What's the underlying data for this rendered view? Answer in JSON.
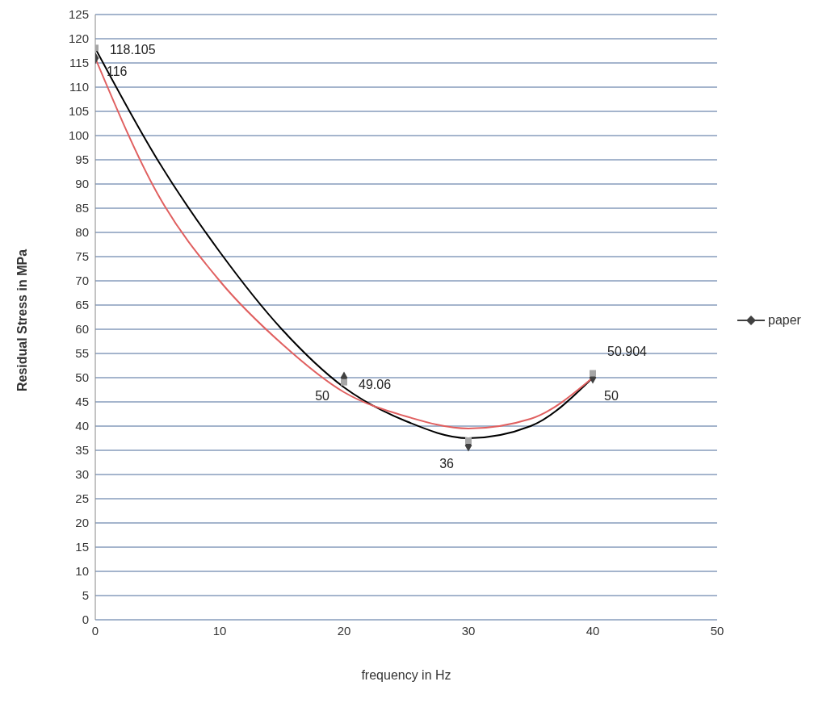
{
  "chart_data": {
    "type": "scatter",
    "xlabel": "frequency in Hz",
    "ylabel": "Residual Stress in MPa",
    "xlim": [
      0,
      50
    ],
    "xticks": [
      0,
      10,
      20,
      30,
      40,
      50
    ],
    "ylim": [
      0,
      125
    ],
    "yticks": [
      0,
      5,
      10,
      15,
      20,
      25,
      30,
      35,
      40,
      45,
      50,
      55,
      60,
      65,
      70,
      75,
      80,
      85,
      90,
      95,
      100,
      105,
      110,
      115,
      120,
      125
    ],
    "grid": "y",
    "legend": "right",
    "series": [
      {
        "name": "paper",
        "marker": "diamond",
        "color": "#404040",
        "x": [
          0,
          20,
          30,
          40
        ],
        "values": [
          116,
          50,
          36,
          50
        ],
        "value_labels": [
          "116",
          "50",
          "36",
          "50"
        ]
      },
      {
        "marker": "square",
        "color": "#a6a6a6",
        "x": [
          0,
          20,
          30,
          40
        ],
        "values": [
          118.105,
          49.06,
          37,
          50.904
        ],
        "value_labels": [
          "118.105",
          "49.06",
          null,
          "50.904"
        ]
      },
      {
        "type": "line",
        "color": "#000000",
        "x": [
          0,
          5,
          10,
          15,
          20,
          25,
          30,
          35,
          40
        ],
        "values": [
          118,
          95,
          76,
          60,
          48,
          41,
          37.5,
          40,
          50
        ]
      },
      {
        "type": "line",
        "color": "#e06060",
        "x": [
          0,
          5,
          10,
          15,
          20,
          25,
          30,
          35,
          40
        ],
        "values": [
          116,
          88,
          70,
          57,
          47,
          42,
          39.5,
          41.5,
          50
        ]
      }
    ]
  }
}
